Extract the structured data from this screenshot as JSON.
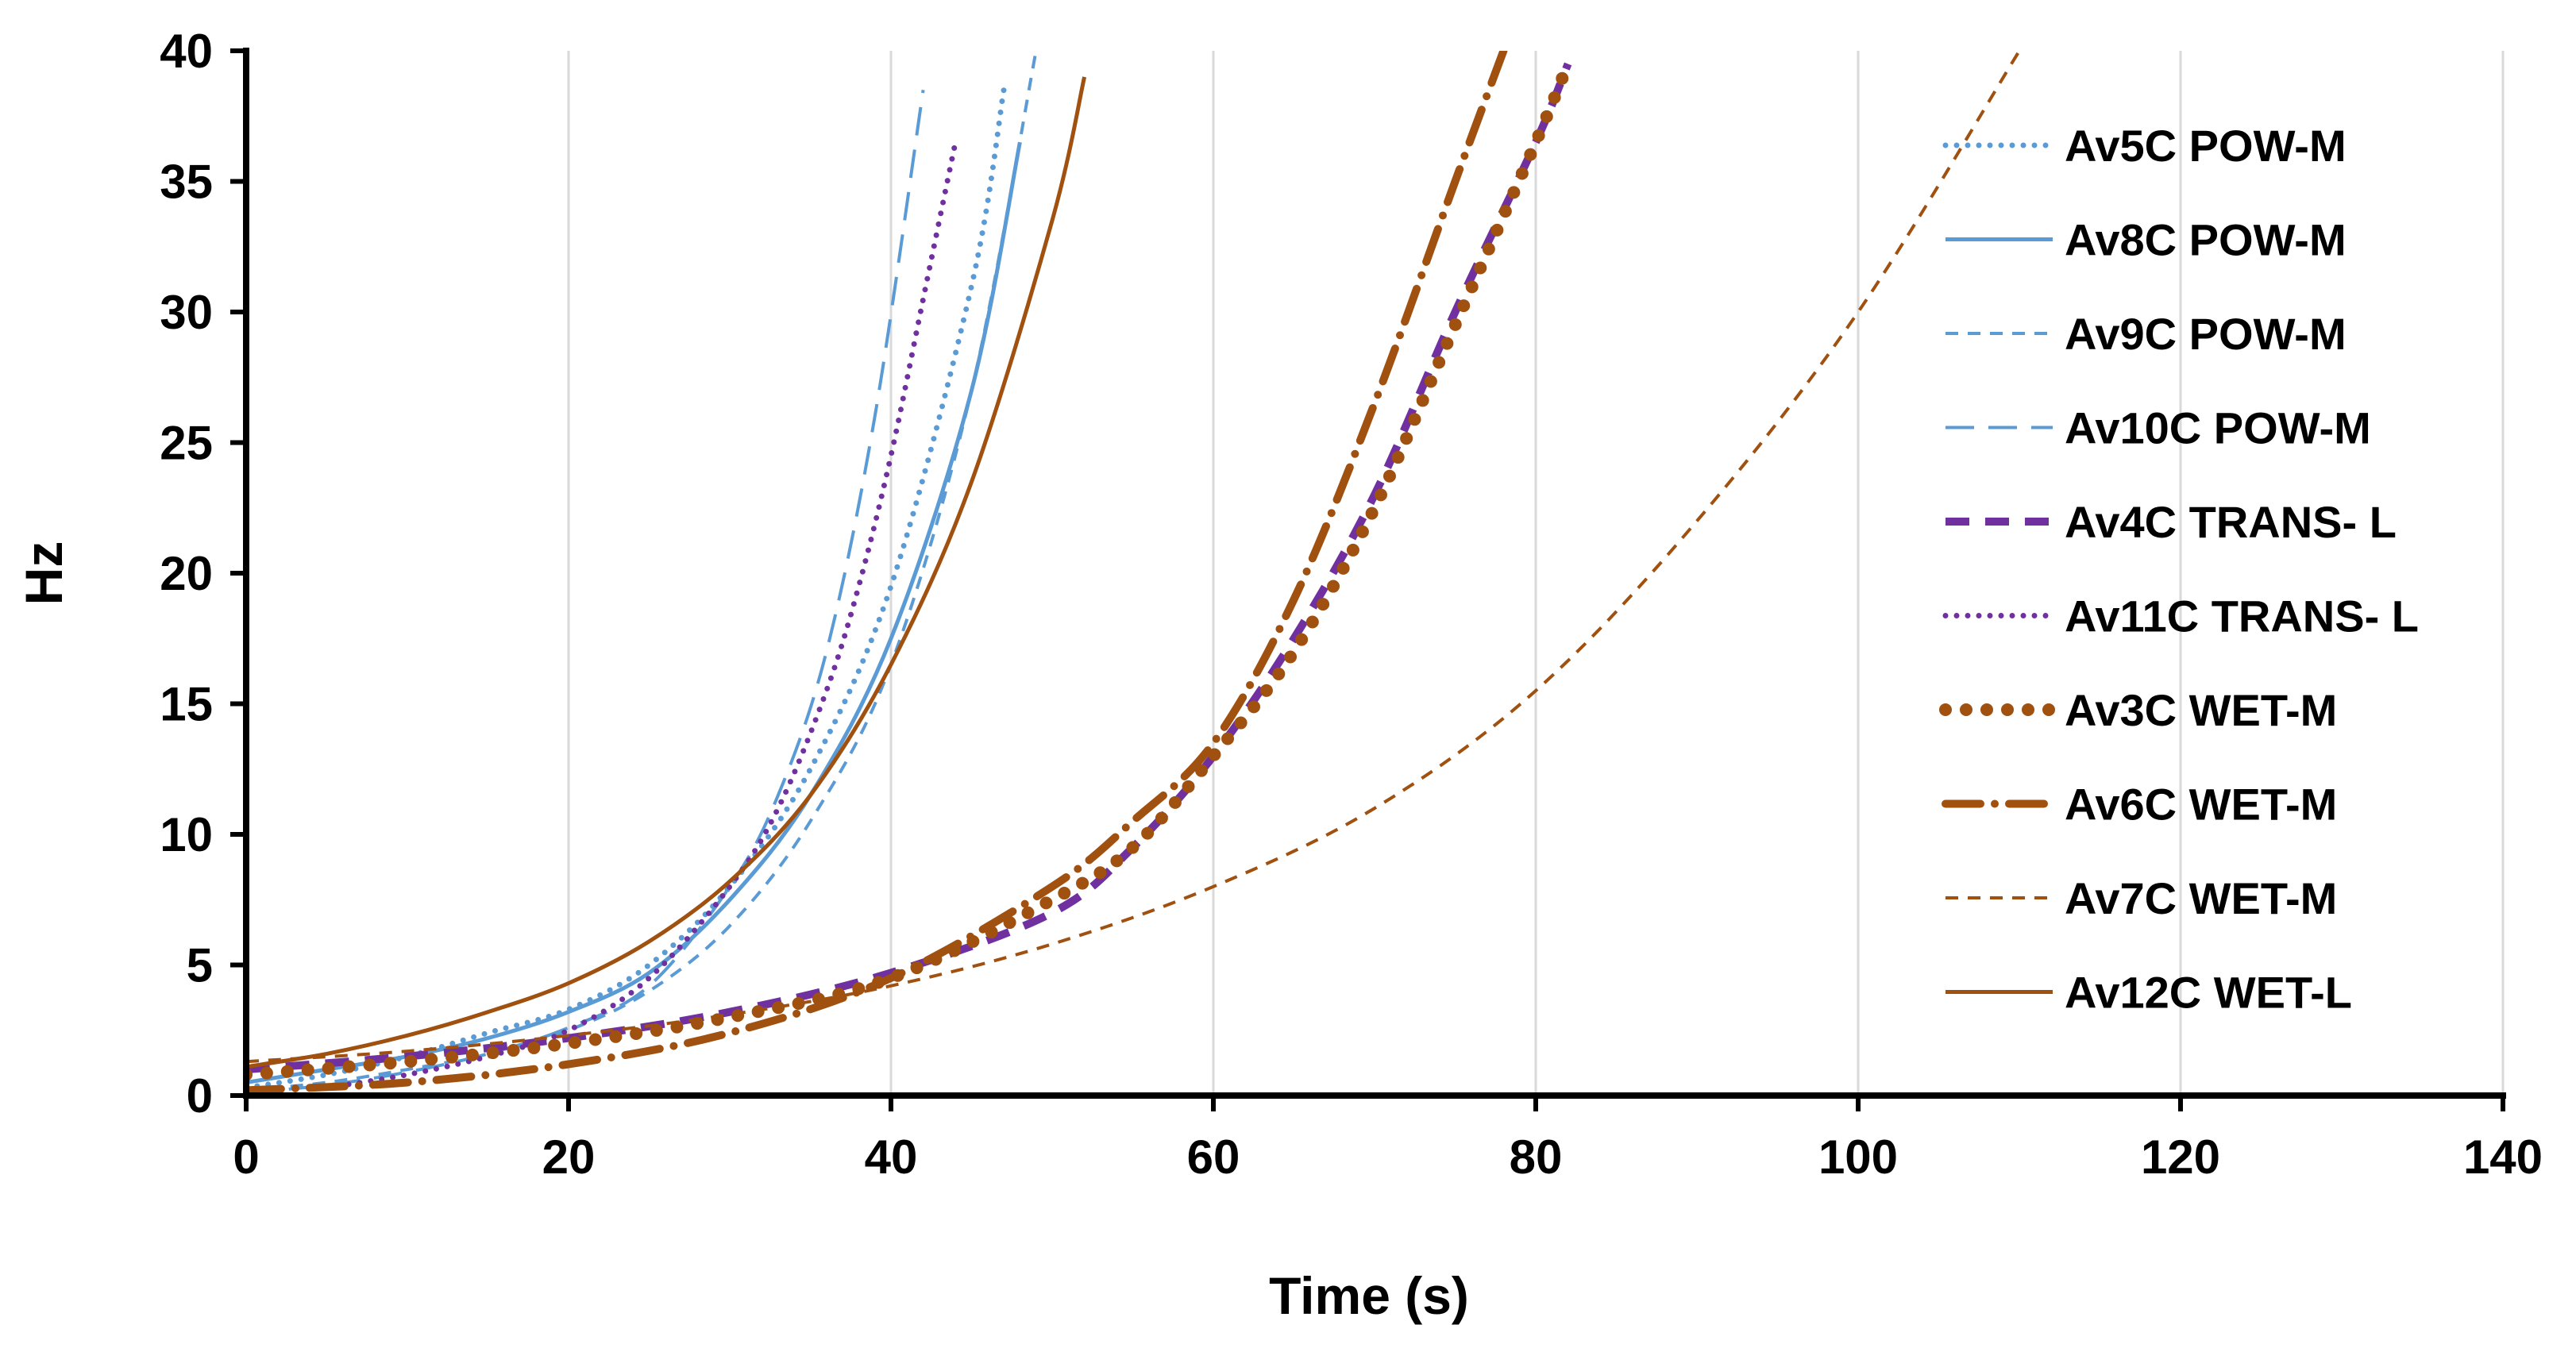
{
  "chart_data": {
    "type": "line",
    "title": "",
    "xlabel": "Time (s)",
    "ylabel": "Hz",
    "xlim": [
      0,
      140
    ],
    "ylim": [
      0,
      40
    ],
    "xticks": [
      0,
      20,
      40,
      60,
      80,
      100,
      120,
      140
    ],
    "yticks": [
      0,
      5,
      10,
      15,
      20,
      25,
      30,
      35,
      40
    ],
    "grid": "vertical",
    "legend_position": "right",
    "series": [
      {
        "name": "Av5C POW-M",
        "color": "#5b9bd5",
        "style": "dotted",
        "x": [
          0,
          5,
          10,
          15,
          20,
          25,
          30,
          35,
          40,
          45,
          47
        ],
        "y": [
          0.3,
          0.8,
          1.5,
          2.4,
          3.3,
          5.0,
          8.0,
          12.5,
          19.5,
          31.0,
          38.5
        ]
      },
      {
        "name": "Av8C POW-M",
        "color": "#5b9bd5",
        "style": "solid",
        "x": [
          0,
          5,
          10,
          15,
          20,
          25,
          30,
          35,
          40,
          45,
          48
        ],
        "y": [
          0.5,
          1.0,
          1.5,
          2.2,
          3.2,
          4.7,
          7.5,
          11.5,
          17.5,
          27.0,
          36.5
        ]
      },
      {
        "name": "Av9C POW-M",
        "color": "#5b9bd5",
        "style": "short-dash",
        "x": [
          0,
          5,
          10,
          15,
          20,
          25,
          30,
          35,
          40,
          45,
          49
        ],
        "y": [
          0.2,
          0.5,
          1.0,
          1.6,
          2.5,
          4.0,
          6.5,
          10.5,
          16.5,
          27.0,
          40.0
        ]
      },
      {
        "name": "Av10C POW-M",
        "color": "#5b9bd5",
        "style": "long-dash",
        "x": [
          0,
          5,
          10,
          15,
          20,
          25,
          30,
          33,
          36,
          39,
          42
        ],
        "y": [
          0.1,
          0.4,
          0.9,
          1.6,
          2.6,
          4.2,
          8.0,
          11.5,
          17.0,
          26.0,
          38.5
        ]
      },
      {
        "name": "Av4C TRANS- L",
        "color": "#7030a0",
        "style": "dash",
        "x": [
          0,
          10,
          20,
          30,
          40,
          50,
          55,
          60,
          65,
          70,
          75,
          80,
          82
        ],
        "y": [
          1.0,
          1.5,
          2.2,
          3.2,
          4.7,
          7.0,
          9.5,
          13.0,
          17.5,
          23.0,
          30.0,
          36.5,
          39.5
        ]
      },
      {
        "name": "Av11C TRANS- L",
        "color": "#7030a0",
        "style": "dotted",
        "x": [
          5,
          10,
          15,
          20,
          25,
          30,
          33,
          36,
          38,
          40,
          42,
          44
        ],
        "y": [
          0.3,
          0.8,
          1.5,
          2.5,
          4.5,
          8.0,
          11.0,
          15.5,
          19.5,
          24.5,
          30.5,
          36.5
        ]
      },
      {
        "name": "Av3C WET-M",
        "color": "#a0500f",
        "style": "round-dot",
        "x": [
          0,
          10,
          20,
          30,
          40,
          50,
          55,
          60,
          65,
          70,
          75,
          80,
          82
        ],
        "y": [
          0.8,
          1.3,
          2.0,
          3.0,
          4.5,
          7.5,
          9.5,
          13.0,
          17.0,
          22.5,
          29.5,
          36.5,
          39.5
        ]
      },
      {
        "name": "Av6C WET-M",
        "color": "#a0500f",
        "style": "dash-dot",
        "x": [
          0,
          10,
          20,
          30,
          40,
          50,
          55,
          60,
          65,
          70,
          75,
          78
        ],
        "y": [
          0.2,
          0.5,
          1.2,
          2.4,
          4.5,
          8.0,
          10.5,
          13.5,
          19.0,
          26.5,
          35.0,
          40.0
        ]
      },
      {
        "name": "Av7C WET-M",
        "color": "#a0500f",
        "style": "short-dash",
        "x": [
          0,
          10,
          20,
          30,
          40,
          50,
          60,
          70,
          80,
          90,
          100,
          110
        ],
        "y": [
          1.3,
          1.7,
          2.3,
          3.1,
          4.2,
          5.8,
          8.0,
          11.0,
          15.5,
          22.0,
          30.0,
          40.0
        ]
      },
      {
        "name": "Av12C WET-L",
        "color": "#a0500f",
        "style": "solid",
        "x": [
          0,
          5,
          10,
          15,
          20,
          25,
          30,
          35,
          40,
          45,
          50,
          52
        ],
        "y": [
          1.1,
          1.6,
          2.3,
          3.2,
          4.3,
          5.9,
          8.2,
          11.5,
          16.5,
          23.5,
          33.5,
          39.0
        ]
      }
    ]
  }
}
